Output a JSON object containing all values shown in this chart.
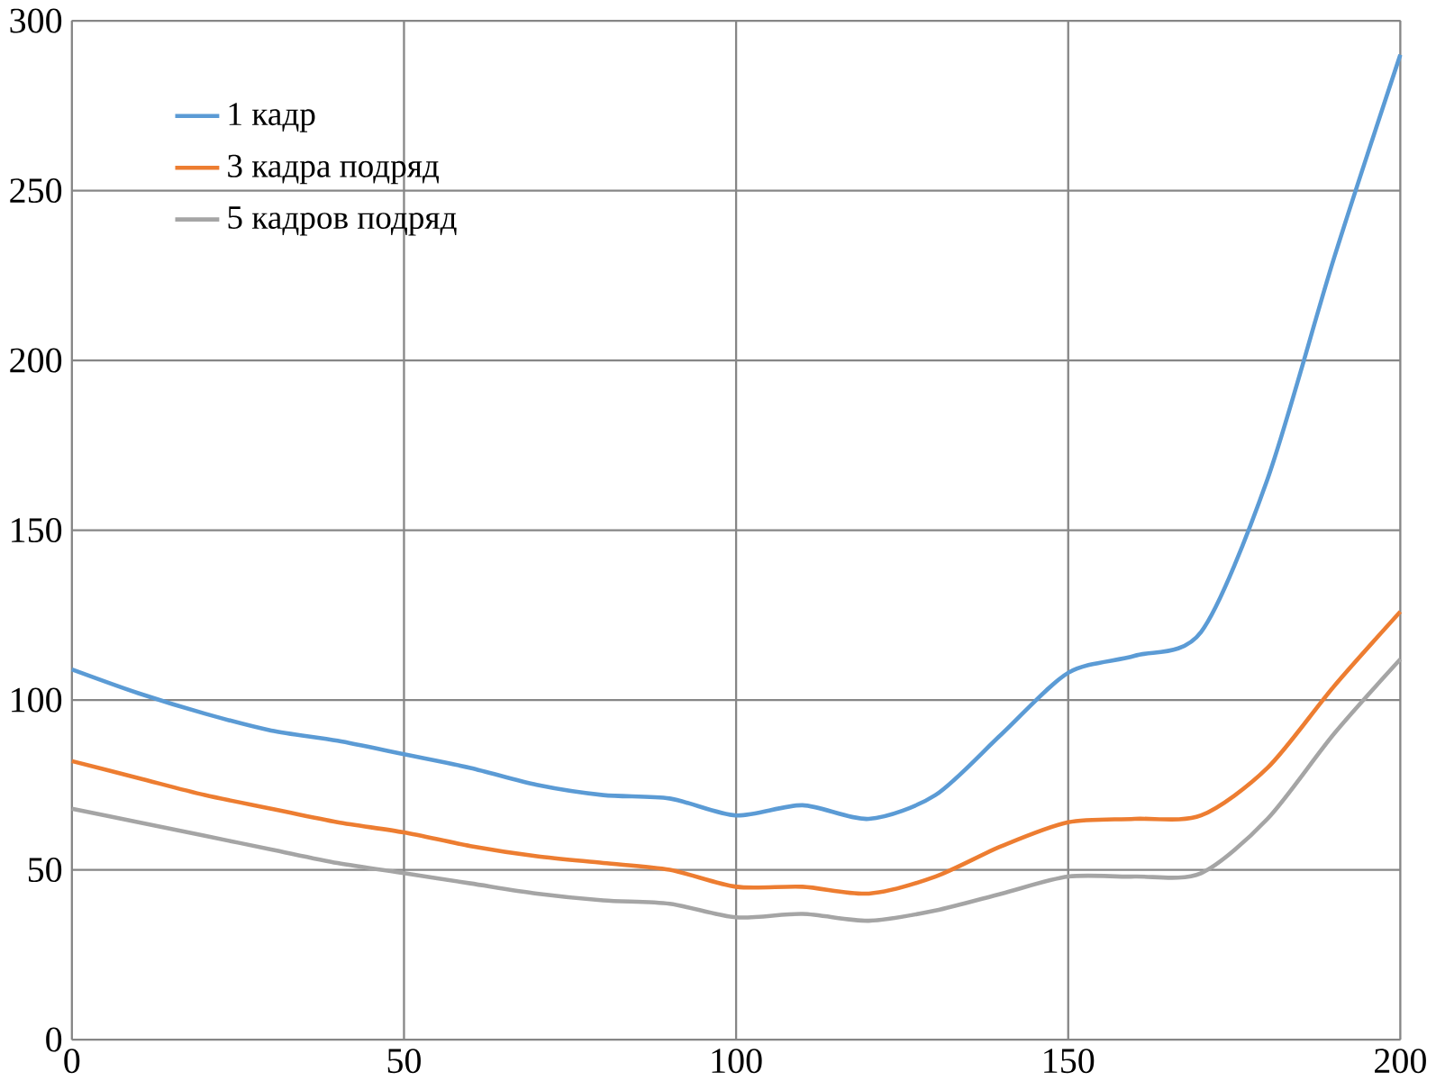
{
  "chart_data": {
    "type": "line",
    "x": [
      0,
      10,
      20,
      30,
      40,
      50,
      60,
      70,
      80,
      90,
      100,
      110,
      120,
      130,
      140,
      150,
      160,
      170,
      180,
      190,
      200
    ],
    "series": [
      {
        "name": "1 кадр",
        "color": "#5b9bd5",
        "values": [
          109,
          102,
          96,
          91,
          88,
          84,
          80,
          75,
          72,
          71,
          66,
          69,
          65,
          72,
          90,
          108,
          113,
          120,
          165,
          230,
          290
        ]
      },
      {
        "name": "3 кадра подряд",
        "color": "#ed7d31",
        "values": [
          82,
          77,
          72,
          68,
          64,
          61,
          57,
          54,
          52,
          50,
          45,
          45,
          43,
          48,
          57,
          64,
          65,
          66,
          80,
          104,
          126
        ]
      },
      {
        "name": "5 кадров подряд",
        "color": "#a5a5a5",
        "values": [
          68,
          64,
          60,
          56,
          52,
          49,
          46,
          43,
          41,
          40,
          36,
          37,
          35,
          38,
          43,
          48,
          48,
          49,
          65,
          90,
          112
        ]
      }
    ],
    "xlim": [
      0,
      200
    ],
    "xticks": [
      0,
      50,
      100,
      150,
      200
    ],
    "ylim": [
      0,
      300
    ],
    "yticks": [
      0,
      50,
      100,
      150,
      200,
      250,
      300
    ],
    "grid": true,
    "legend": "top left",
    "marker": "none",
    "line_style": "solid"
  }
}
